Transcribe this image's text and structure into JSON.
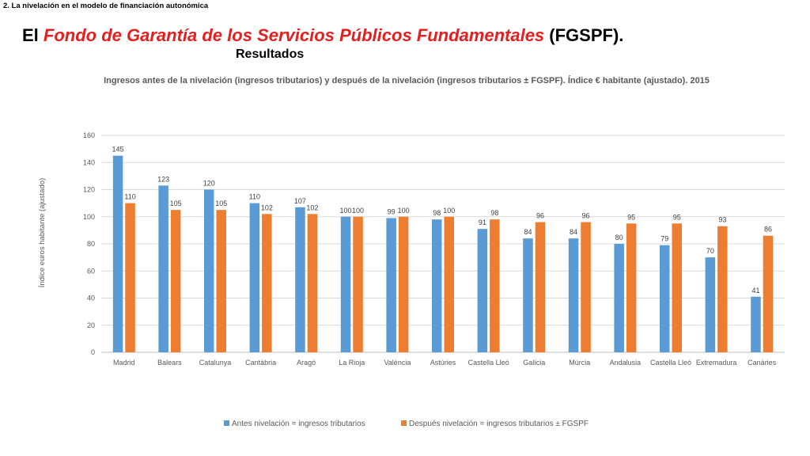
{
  "header": {
    "section_label": "2. La nivelación en el modelo de financiación autonómica",
    "title_prefix": "El ",
    "title_highlight": "Fondo de Garantía de los Servicios Públicos Fundamentales",
    "title_suffix": " (FGSPF).",
    "subtitle": "Resultados"
  },
  "colors": {
    "highlight": "#e41f1f",
    "series_before": "#5b9bd5",
    "series_after": "#ed7d31",
    "grid": "#d9d9d9"
  },
  "chart_data": {
    "type": "bar",
    "title": "Ingresos antes de la nivelación (ingresos tributarios) y después de la nivelación (ingresos tributarios ± FGSPF). Índice € habitante (ajustado). 2015",
    "ylabel": "Índice euros habitante (ajustado)",
    "xlabel": "",
    "ylim": [
      0,
      160
    ],
    "yticks": [
      0,
      20,
      40,
      60,
      80,
      100,
      120,
      140,
      160
    ],
    "grid": true,
    "legend_position": "bottom",
    "categories": [
      "Madrid",
      "Balears",
      "Catalunya",
      "Cantàbria",
      "Aragó",
      "La Rioja",
      "València",
      "Astúries",
      "Castella Lleó",
      "Galícia",
      "Múrcia",
      "Andalusia",
      "Castella Lleó",
      "Extremadura",
      "Canàries"
    ],
    "series": [
      {
        "name": "Antes nivelación = ingresos tributarios",
        "color": "#5b9bd5",
        "values": [
          145,
          123,
          120,
          110,
          107,
          100,
          99,
          98,
          91,
          84,
          84,
          80,
          79,
          70,
          41
        ]
      },
      {
        "name": "Después nivelación = ingresos tributarios ± FGSPF",
        "color": "#ed7d31",
        "values": [
          110,
          105,
          105,
          102,
          102,
          100,
          100,
          100,
          98,
          96,
          96,
          95,
          95,
          93,
          86
        ]
      }
    ]
  }
}
